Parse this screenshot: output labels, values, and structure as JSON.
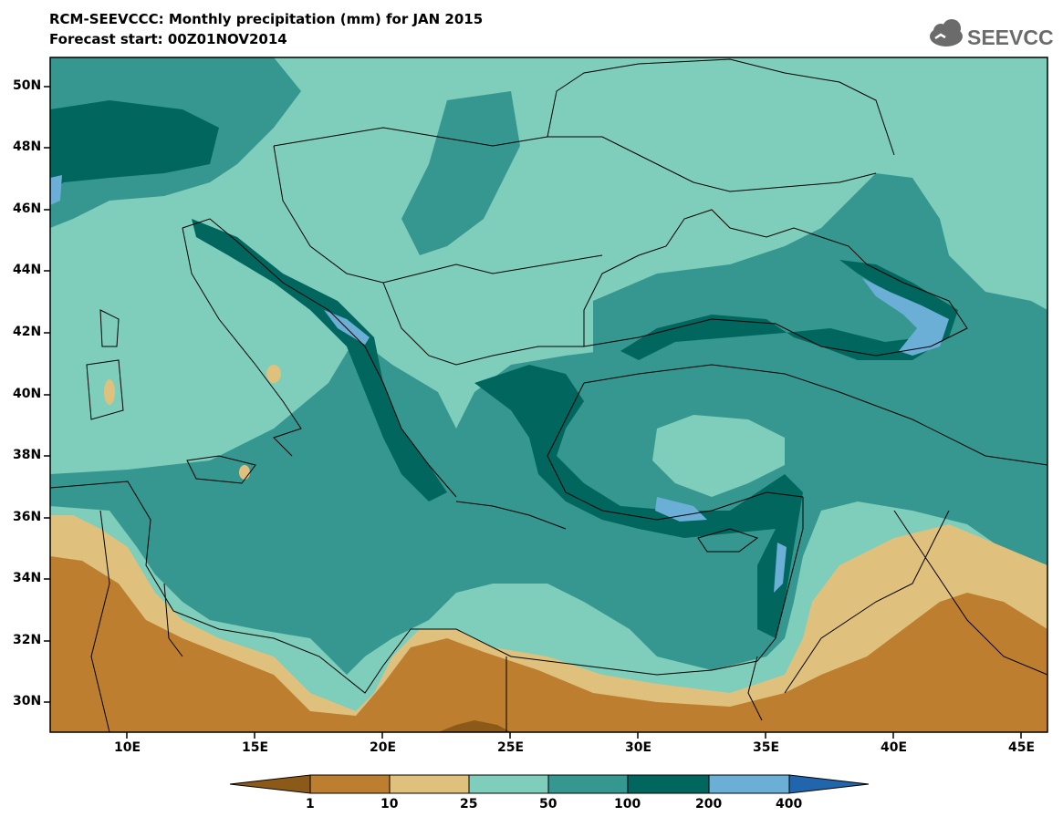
{
  "title_line1": "RCM-SEEVCCC: Monthly precipitation (mm) for JAN 2015",
  "title_line2": "Forecast start: 00Z01NOV2014",
  "logo_text": "SEEVCCC",
  "lat_labels": [
    "50N",
    "48N",
    "46N",
    "44N",
    "42N",
    "40N",
    "38N",
    "36N",
    "34N",
    "32N",
    "30N"
  ],
  "lon_labels": [
    "10E",
    "15E",
    "20E",
    "25E",
    "30E",
    "35E",
    "40E",
    "45E"
  ],
  "colorbar": {
    "labels": [
      "1",
      "10",
      "25",
      "50",
      "100",
      "200",
      "400"
    ],
    "colors": [
      "#8c5a18",
      "#bd7f2f",
      "#dfc17d",
      "#7fcdbb",
      "#35978f",
      "#01665e",
      "#6baed6",
      "#2166ac"
    ]
  }
}
